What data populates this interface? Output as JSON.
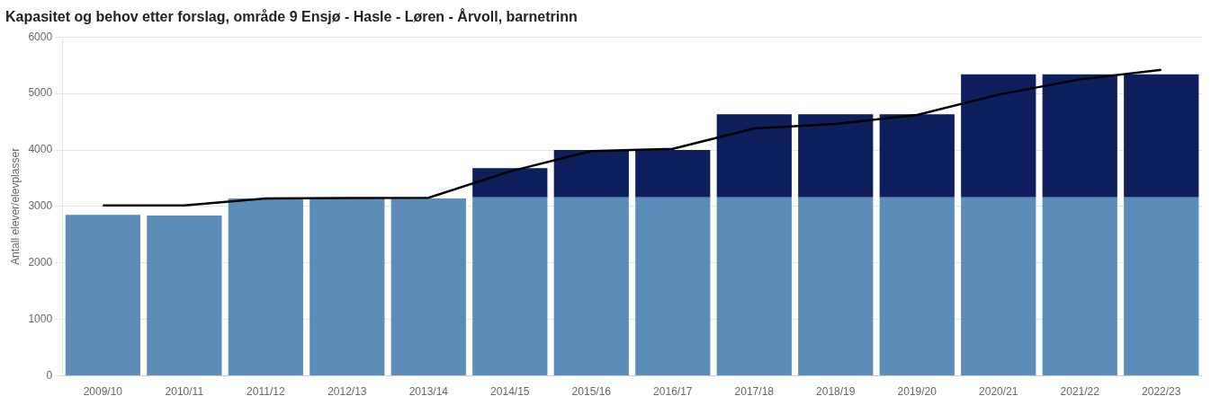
{
  "chart_data": {
    "type": "bar",
    "title": "Kapasitet og behov etter forslag, område 9 Ensjø - Hasle - Løren - Årvoll, barnetrinn",
    "y_label": "Antall elever/elevplasser",
    "categories": [
      "2009/10",
      "2010/11",
      "2011/12",
      "2012/13",
      "2013/14",
      "2014/15",
      "2015/16",
      "2016/17",
      "2017/18",
      "2018/19",
      "2019/20",
      "2020/21",
      "2021/22",
      "2022/23"
    ],
    "stacked": true,
    "series": [
      {
        "color": "#5b8db8",
        "values": [
          2850,
          2840,
          3140,
          3140,
          3140,
          3160,
          3160,
          3160,
          3160,
          3160,
          3160,
          3160,
          3160,
          3160
        ]
      },
      {
        "color": "#0d1f5c",
        "values": [
          0,
          0,
          0,
          0,
          0,
          520,
          840,
          840,
          1470,
          1470,
          1470,
          2180,
          2180,
          2180
        ]
      },
      {
        "type": "line",
        "color": "#000000",
        "values": [
          3020,
          3020,
          3140,
          3150,
          3155,
          3620,
          3980,
          4020,
          4380,
          4460,
          4620,
          4980,
          5250,
          5420
        ]
      }
    ],
    "ylim": [
      0,
      6000
    ],
    "yticks": [
      0,
      1000,
      2000,
      3000,
      4000,
      5000,
      6000
    ],
    "grid": true
  }
}
